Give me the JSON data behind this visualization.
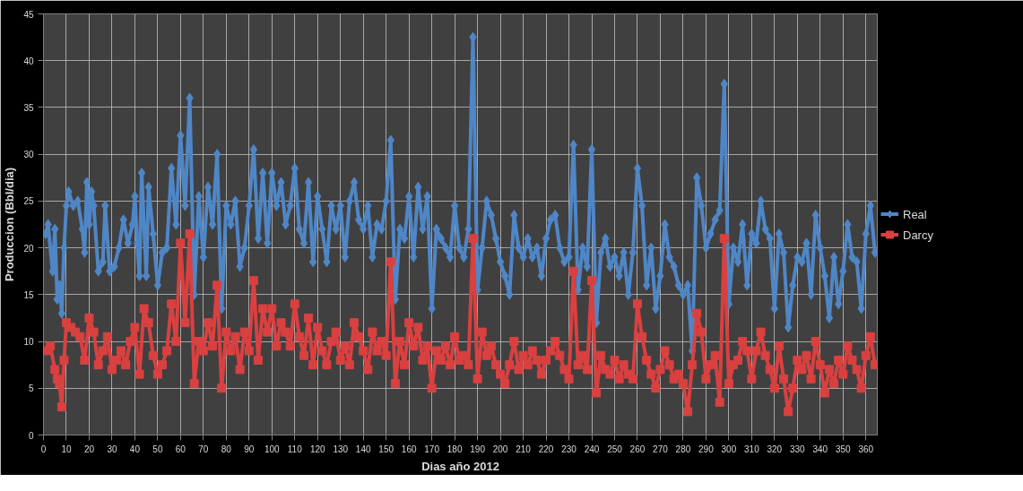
{
  "chart_data": {
    "type": "line",
    "xlabel": "Dias año 2012",
    "ylabel": "Produccion (Bbl/dia)",
    "xlim": [
      0,
      365
    ],
    "ylim": [
      0,
      45
    ],
    "xticks": [
      0,
      10,
      20,
      30,
      40,
      50,
      60,
      70,
      80,
      90,
      100,
      110,
      120,
      130,
      140,
      150,
      160,
      170,
      180,
      190,
      200,
      210,
      220,
      230,
      240,
      250,
      260,
      270,
      280,
      290,
      300,
      310,
      320,
      330,
      340,
      350,
      360
    ],
    "yticks": [
      0,
      5,
      10,
      15,
      20,
      25,
      30,
      35,
      40,
      45
    ],
    "grid": true,
    "legend": "right",
    "line_style": "solid",
    "series": [
      {
        "name": "Real",
        "color": "#4f86c6",
        "marker": "diamond",
        "x": [
          1,
          2,
          4,
          5,
          6,
          7,
          8,
          9,
          10,
          11,
          13,
          15,
          17,
          18,
          19,
          20,
          21,
          22,
          24,
          26,
          27,
          29,
          31,
          33,
          35,
          37,
          39,
          40,
          41,
          42,
          43,
          45,
          46,
          48,
          50,
          52,
          54,
          56,
          58,
          60,
          62,
          64,
          66,
          68,
          70,
          72,
          74,
          76,
          78,
          80,
          82,
          84,
          86,
          88,
          90,
          92,
          94,
          96,
          98,
          100,
          102,
          104,
          106,
          108,
          110,
          112,
          114,
          116,
          118,
          120,
          122,
          124,
          126,
          128,
          130,
          132,
          134,
          136,
          138,
          140,
          142,
          144,
          146,
          148,
          150,
          152,
          154,
          156,
          158,
          160,
          162,
          164,
          166,
          168,
          170,
          172,
          174,
          176,
          178,
          180,
          182,
          184,
          186,
          188,
          190,
          192,
          194,
          196,
          198,
          200,
          202,
          204,
          206,
          208,
          210,
          212,
          214,
          216,
          218,
          220,
          222,
          224,
          226,
          228,
          230,
          232,
          234,
          236,
          238,
          240,
          242,
          244,
          246,
          248,
          250,
          252,
          254,
          256,
          258,
          260,
          262,
          264,
          266,
          268,
          270,
          272,
          274,
          276,
          278,
          280,
          282,
          284,
          286,
          288,
          290,
          292,
          294,
          296,
          298,
          300,
          302,
          304,
          306,
          308,
          310,
          312,
          314,
          316,
          318,
          320,
          322,
          324,
          326,
          328,
          330,
          332,
          334,
          336,
          338,
          340,
          342,
          344,
          346,
          348,
          350,
          352,
          354,
          356,
          358,
          360,
          362,
          364
        ],
        "values": [
          21.5,
          22.5,
          17.5,
          22,
          14.5,
          16,
          13,
          20,
          24.5,
          26,
          24.5,
          25,
          22,
          19.5,
          27,
          22.5,
          26,
          24.5,
          17.5,
          18.5,
          24.5,
          17.5,
          18,
          20,
          23,
          20.5,
          22.5,
          25.5,
          20.5,
          17,
          28,
          17,
          26.5,
          21.5,
          16,
          19.5,
          20,
          28.5,
          22.5,
          32,
          24.5,
          36,
          15,
          25.5,
          19,
          26.5,
          22.5,
          30,
          13.5,
          24.5,
          22.5,
          25,
          18,
          20,
          24.5,
          30.5,
          21,
          28,
          20.5,
          28,
          24.5,
          27,
          22.5,
          24.5,
          28.5,
          22,
          20.5,
          27,
          18.5,
          25.5,
          22,
          18.5,
          24.5,
          22,
          24.5,
          19,
          25,
          27,
          23,
          22,
          24.5,
          19,
          22.5,
          22,
          25,
          31.5,
          14.5,
          22,
          21,
          25.5,
          19,
          26.5,
          22,
          25.5,
          13.5,
          22,
          21,
          20,
          19,
          24.5,
          20,
          19,
          22,
          42.5,
          15.5,
          20,
          25,
          23.5,
          21,
          18.5,
          17,
          15,
          23.5,
          20,
          19,
          21,
          19,
          20,
          17,
          21,
          23,
          23.5,
          20,
          18.5,
          19,
          31,
          15.5,
          20,
          18,
          30.5,
          12,
          19.5,
          21,
          18,
          19,
          17,
          19.5,
          15,
          19.5,
          28.5,
          24.5,
          16,
          20,
          13.5,
          17,
          22.5,
          19,
          18,
          16,
          15,
          16,
          9,
          27.5,
          24.5,
          20,
          21.5,
          23,
          24,
          37.5,
          14,
          20,
          18.5,
          22.5,
          16,
          21.5,
          20.5,
          25,
          22,
          21,
          13.5,
          21.5,
          19.5,
          11.5,
          16,
          19,
          18.5,
          20.5,
          15,
          23.5,
          20,
          17,
          12.5,
          19,
          14,
          17.5,
          22.5,
          19,
          18.5,
          13.5,
          21.5,
          24.5,
          19.5
        ]
      },
      {
        "name": "Darcy",
        "color": "#d94040",
        "marker": "square",
        "x": [
          1,
          3,
          5,
          6,
          7,
          8,
          9,
          10,
          12,
          14,
          16,
          18,
          20,
          22,
          24,
          26,
          28,
          30,
          32,
          34,
          36,
          38,
          40,
          42,
          44,
          46,
          48,
          50,
          52,
          54,
          56,
          58,
          60,
          62,
          64,
          66,
          68,
          70,
          72,
          74,
          76,
          78,
          80,
          82,
          84,
          86,
          88,
          90,
          92,
          94,
          96,
          98,
          100,
          102,
          104,
          106,
          108,
          110,
          112,
          114,
          116,
          118,
          120,
          122,
          124,
          126,
          128,
          130,
          132,
          134,
          136,
          138,
          140,
          142,
          144,
          146,
          148,
          150,
          152,
          154,
          156,
          158,
          160,
          162,
          164,
          166,
          168,
          170,
          172,
          174,
          176,
          178,
          180,
          182,
          184,
          186,
          188,
          190,
          192,
          194,
          196,
          198,
          200,
          202,
          204,
          206,
          208,
          210,
          212,
          214,
          216,
          218,
          220,
          222,
          224,
          226,
          228,
          230,
          232,
          234,
          236,
          238,
          240,
          242,
          244,
          246,
          248,
          250,
          252,
          254,
          256,
          258,
          260,
          262,
          264,
          266,
          268,
          270,
          272,
          274,
          276,
          278,
          280,
          282,
          284,
          286,
          288,
          290,
          292,
          294,
          296,
          298,
          300,
          302,
          304,
          306,
          308,
          310,
          312,
          314,
          316,
          318,
          320,
          322,
          324,
          326,
          328,
          330,
          332,
          334,
          336,
          338,
          340,
          342,
          344,
          346,
          348,
          350,
          352,
          354,
          356,
          358,
          360,
          362,
          364
        ],
        "values": [
          9,
          9.5,
          7,
          6,
          5.5,
          3,
          8,
          12,
          11.5,
          11,
          10.5,
          8,
          12.5,
          11,
          7.5,
          9,
          10.5,
          7,
          8,
          9,
          7.5,
          10,
          11.5,
          6.5,
          13.5,
          12,
          8.5,
          6.5,
          7.5,
          9,
          14,
          10,
          20.5,
          12,
          21.5,
          5.5,
          10,
          9,
          12,
          9.5,
          16,
          5,
          11,
          9,
          10.5,
          7,
          11,
          9,
          16.5,
          8,
          13.5,
          11,
          13.5,
          9.5,
          12,
          11,
          9.5,
          14,
          10.5,
          8.5,
          12.5,
          7.5,
          11.5,
          9,
          7.5,
          10,
          11,
          8,
          9.5,
          7.5,
          12,
          10.5,
          9,
          7,
          11,
          9,
          10,
          8.5,
          18.5,
          5.5,
          10,
          7.5,
          12,
          9.5,
          11.5,
          8,
          9.5,
          5,
          9,
          8,
          9.5,
          7.5,
          10.5,
          8,
          8.5,
          7.5,
          21,
          6,
          11,
          8.5,
          9.5,
          7.5,
          6.5,
          5.5,
          7.5,
          10,
          7,
          8.5,
          7.5,
          9,
          8,
          6.5,
          8,
          9,
          10,
          8.5,
          7,
          6,
          17.5,
          7.5,
          8.5,
          7,
          16.5,
          4.5,
          8.5,
          7,
          6.5,
          8,
          6,
          7.5,
          6.5,
          6,
          14,
          10.5,
          8,
          6.5,
          5,
          7,
          9,
          7.5,
          6,
          6.5,
          5.5,
          2.5,
          7.5,
          13,
          11,
          6,
          7.5,
          8.5,
          3.5,
          21,
          5.5,
          7.5,
          8,
          10,
          9,
          6,
          9,
          11,
          8.5,
          7,
          5,
          9.5,
          6,
          2.5,
          5,
          8,
          7,
          8.5,
          6,
          10,
          7.5,
          4.5,
          7,
          5.5,
          8,
          6.5,
          9.5,
          8,
          7,
          5,
          8.5,
          10.5,
          7.5
        ]
      }
    ]
  }
}
